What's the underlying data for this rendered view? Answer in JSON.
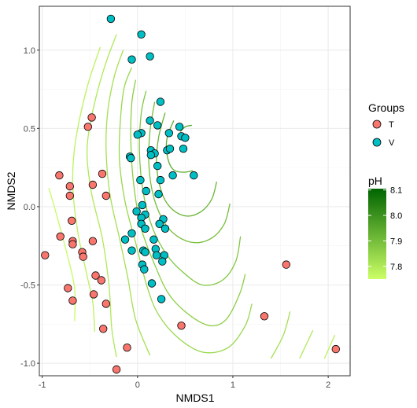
{
  "chart_data": {
    "type": "scatter",
    "xlabel": "NMDS1",
    "ylabel": "NMDS2",
    "xlim": [
      -1.03,
      2.23
    ],
    "ylim": [
      -1.08,
      1.28
    ],
    "xticks": [
      -1,
      0,
      1,
      2
    ],
    "yticks": [
      -1.0,
      -0.5,
      0.0,
      0.5,
      1.0
    ],
    "ytick_labels": [
      "-1.0",
      "-0.5",
      "0.0",
      "0.5",
      "1.0"
    ],
    "grid": true,
    "legend_groups": {
      "title": "Groups",
      "entries": [
        {
          "name": "T",
          "color": "#F8766D"
        },
        {
          "name": "V",
          "color": "#00BFC4"
        }
      ]
    },
    "legend_ph": {
      "title": "pH",
      "ticks": [
        "8.1",
        "8.0",
        "7.9",
        "7.8"
      ],
      "tick_values": [
        8.1,
        8.0,
        7.9,
        7.8
      ],
      "range": [
        7.75,
        8.105
      ],
      "color_low": "#CCFF66",
      "color_high": "#006400"
    },
    "series": [
      {
        "name": "T",
        "color": "#F8766D",
        "points": [
          [
            -0.97,
            -0.31
          ],
          [
            -0.82,
            0.2
          ],
          [
            -0.81,
            -0.19
          ],
          [
            -0.73,
            -0.52
          ],
          [
            -0.71,
            0.07
          ],
          [
            -0.71,
            0.13
          ],
          [
            -0.69,
            -0.09
          ],
          [
            -0.68,
            -0.22
          ],
          [
            -0.68,
            -0.24
          ],
          [
            -0.68,
            -0.6
          ],
          [
            -0.58,
            -0.29
          ],
          [
            -0.57,
            -0.32
          ],
          [
            -0.52,
            0.51
          ],
          [
            -0.48,
            0.57
          ],
          [
            -0.47,
            0.14
          ],
          [
            -0.47,
            -0.22
          ],
          [
            -0.46,
            -0.56
          ],
          [
            -0.44,
            -0.44
          ],
          [
            -0.38,
            -0.47
          ],
          [
            -0.37,
            0.21
          ],
          [
            -0.36,
            -0.78
          ],
          [
            -0.33,
            0.07
          ],
          [
            -0.33,
            -0.62
          ],
          [
            -0.22,
            -1.04
          ],
          [
            -0.11,
            -0.9
          ],
          [
            0.46,
            -0.76
          ],
          [
            1.33,
            -0.7
          ],
          [
            1.56,
            -0.37
          ],
          [
            2.08,
            -0.91
          ]
        ]
      },
      {
        "name": "V",
        "color": "#00BFC4",
        "points": [
          [
            -0.28,
            1.2
          ],
          [
            0.04,
            1.1
          ],
          [
            0.13,
            0.96
          ],
          [
            -0.06,
            0.94
          ],
          [
            0.24,
            0.67
          ],
          [
            0.13,
            0.55
          ],
          [
            0.21,
            0.52
          ],
          [
            0.33,
            0.47
          ],
          [
            0.44,
            0.51
          ],
          [
            0.04,
            0.47
          ],
          [
            0.0,
            0.46
          ],
          [
            0.46,
            0.45
          ],
          [
            0.5,
            0.44
          ],
          [
            0.14,
            0.36
          ],
          [
            0.18,
            0.34
          ],
          [
            0.31,
            0.36
          ],
          [
            0.34,
            0.37
          ],
          [
            0.48,
            0.37
          ],
          [
            -0.08,
            0.32
          ],
          [
            -0.07,
            0.31
          ],
          [
            0.14,
            0.33
          ],
          [
            0.21,
            0.26
          ],
          [
            0.37,
            0.2
          ],
          [
            0.59,
            0.2
          ],
          [
            0.03,
            0.17
          ],
          [
            0.24,
            0.17
          ],
          [
            0.09,
            0.1
          ],
          [
            0.22,
            0.08
          ],
          [
            0.05,
            0.01
          ],
          [
            -0.01,
            -0.03
          ],
          [
            0.08,
            -0.05
          ],
          [
            0.04,
            -0.07
          ],
          [
            0.27,
            -0.08
          ],
          [
            0.23,
            -0.11
          ],
          [
            0.04,
            -0.11
          ],
          [
            -0.13,
            -0.21
          ],
          [
            0.08,
            -0.14
          ],
          [
            0.29,
            -0.14
          ],
          [
            -0.06,
            -0.28
          ],
          [
            -0.06,
            -0.17
          ],
          [
            0.17,
            -0.21
          ],
          [
            0.06,
            -0.28
          ],
          [
            0.08,
            -0.29
          ],
          [
            0.19,
            -0.27
          ],
          [
            0.2,
            -0.31
          ],
          [
            0.28,
            -0.31
          ],
          [
            0.05,
            -0.37
          ],
          [
            0.07,
            -0.4
          ],
          [
            0.26,
            -0.35
          ],
          [
            0.15,
            -0.49
          ],
          [
            0.25,
            -0.59
          ]
        ]
      }
    ],
    "contours": [
      {
        "ph": 7.76,
        "segments": [
          [
            [
              -0.93,
              0.12
            ],
            [
              -0.85,
              -0.05
            ],
            [
              -0.74,
              -0.3
            ],
            [
              -0.66,
              -0.52
            ],
            [
              -0.66,
              -0.73
            ]
          ]
        ]
      },
      {
        "ph": 7.78,
        "segments": [
          [
            [
              -0.39,
              1.02
            ],
            [
              -0.53,
              0.76
            ],
            [
              -0.65,
              0.42
            ],
            [
              -0.68,
              0.15
            ],
            [
              -0.63,
              -0.15
            ],
            [
              -0.53,
              -0.44
            ],
            [
              -0.47,
              -0.61
            ],
            [
              -0.45,
              -0.8
            ]
          ],
          [
            [
              1.96,
              -0.97
            ],
            [
              2.07,
              -0.82
            ]
          ]
        ]
      },
      {
        "ph": 7.8,
        "segments": [
          [
            [
              -0.22,
              1.1
            ],
            [
              -0.32,
              0.94
            ],
            [
              -0.41,
              0.76
            ],
            [
              -0.49,
              0.55
            ],
            [
              -0.53,
              0.34
            ],
            [
              -0.48,
              0.08
            ],
            [
              -0.37,
              -0.2
            ],
            [
              -0.3,
              -0.5
            ],
            [
              -0.27,
              -0.78
            ],
            [
              -0.22,
              -0.96
            ]
          ],
          [
            [
              1.7,
              -0.97
            ],
            [
              1.84,
              -0.79
            ]
          ]
        ]
      },
      {
        "ph": 7.82,
        "segments": [
          [
            [
              -0.15,
              1.0
            ],
            [
              -0.24,
              0.84
            ],
            [
              -0.31,
              0.62
            ],
            [
              -0.33,
              0.37
            ],
            [
              -0.29,
              0.08
            ],
            [
              -0.19,
              -0.2
            ],
            [
              -0.1,
              -0.46
            ],
            [
              -0.02,
              -0.72
            ],
            [
              0.13,
              -0.95
            ]
          ],
          [
            [
              1.4,
              -0.97
            ],
            [
              1.53,
              -0.82
            ],
            [
              1.6,
              -0.67
            ]
          ]
        ]
      },
      {
        "ph": 7.84,
        "segments": [
          [
            [
              -0.06,
              0.89
            ],
            [
              -0.14,
              0.76
            ],
            [
              -0.18,
              0.55
            ],
            [
              -0.19,
              0.3
            ],
            [
              -0.13,
              0.03
            ],
            [
              -0.02,
              -0.23
            ],
            [
              0.1,
              -0.51
            ],
            [
              0.22,
              -0.69
            ],
            [
              0.43,
              -0.84
            ],
            [
              0.69,
              -0.93
            ],
            [
              0.95,
              -0.9
            ],
            [
              1.13,
              -0.76
            ],
            [
              1.2,
              -0.62
            ]
          ]
        ]
      },
      {
        "ph": 7.86,
        "segments": [
          [
            [
              -0.02,
              0.81
            ],
            [
              -0.06,
              0.66
            ],
            [
              -0.07,
              0.42
            ],
            [
              -0.04,
              0.14
            ],
            [
              0.04,
              -0.14
            ],
            [
              0.18,
              -0.37
            ],
            [
              0.33,
              -0.56
            ],
            [
              0.54,
              -0.69
            ],
            [
              0.76,
              -0.76
            ],
            [
              0.93,
              -0.72
            ],
            [
              1.07,
              -0.56
            ],
            [
              1.13,
              -0.43
            ]
          ]
        ]
      },
      {
        "ph": 7.88,
        "segments": [
          [
            [
              0.09,
              0.74
            ],
            [
              0.04,
              0.6
            ],
            [
              0.02,
              0.36
            ],
            [
              0.06,
              0.09
            ],
            [
              0.16,
              -0.14
            ],
            [
              0.31,
              -0.31
            ],
            [
              0.48,
              -0.42
            ],
            [
              0.68,
              -0.5
            ],
            [
              0.89,
              -0.47
            ],
            [
              1.03,
              -0.35
            ],
            [
              1.08,
              -0.19
            ]
          ]
        ]
      },
      {
        "ph": 7.9,
        "segments": [
          [
            [
              0.18,
              0.67
            ],
            [
              0.13,
              0.48
            ],
            [
              0.12,
              0.26
            ],
            [
              0.17,
              0.06
            ],
            [
              0.28,
              -0.1
            ],
            [
              0.42,
              -0.19
            ],
            [
              0.6,
              -0.23
            ],
            [
              0.78,
              -0.2
            ],
            [
              0.91,
              -0.11
            ],
            [
              0.97,
              0.02
            ]
          ]
        ]
      },
      {
        "ph": 7.92,
        "segments": [
          [
            [
              0.29,
              0.6
            ],
            [
              0.22,
              0.44
            ],
            [
              0.2,
              0.26
            ],
            [
              0.26,
              0.08
            ],
            [
              0.37,
              -0.02
            ],
            [
              0.52,
              -0.06
            ],
            [
              0.67,
              -0.03
            ],
            [
              0.78,
              0.05
            ],
            [
              0.83,
              0.16
            ]
          ]
        ]
      },
      {
        "ph": 7.94,
        "segments": [
          [
            [
              0.38,
              0.55
            ],
            [
              0.31,
              0.44
            ],
            [
              0.31,
              0.33
            ],
            [
              0.37,
              0.24
            ],
            [
              0.48,
              0.22
            ],
            [
              0.58,
              0.23
            ]
          ]
        ]
      },
      {
        "ph": 7.96,
        "segments": [
          [
            [
              0.45,
              0.48
            ],
            [
              0.5,
              0.51
            ],
            [
              0.57,
              0.52
            ]
          ]
        ]
      }
    ]
  }
}
